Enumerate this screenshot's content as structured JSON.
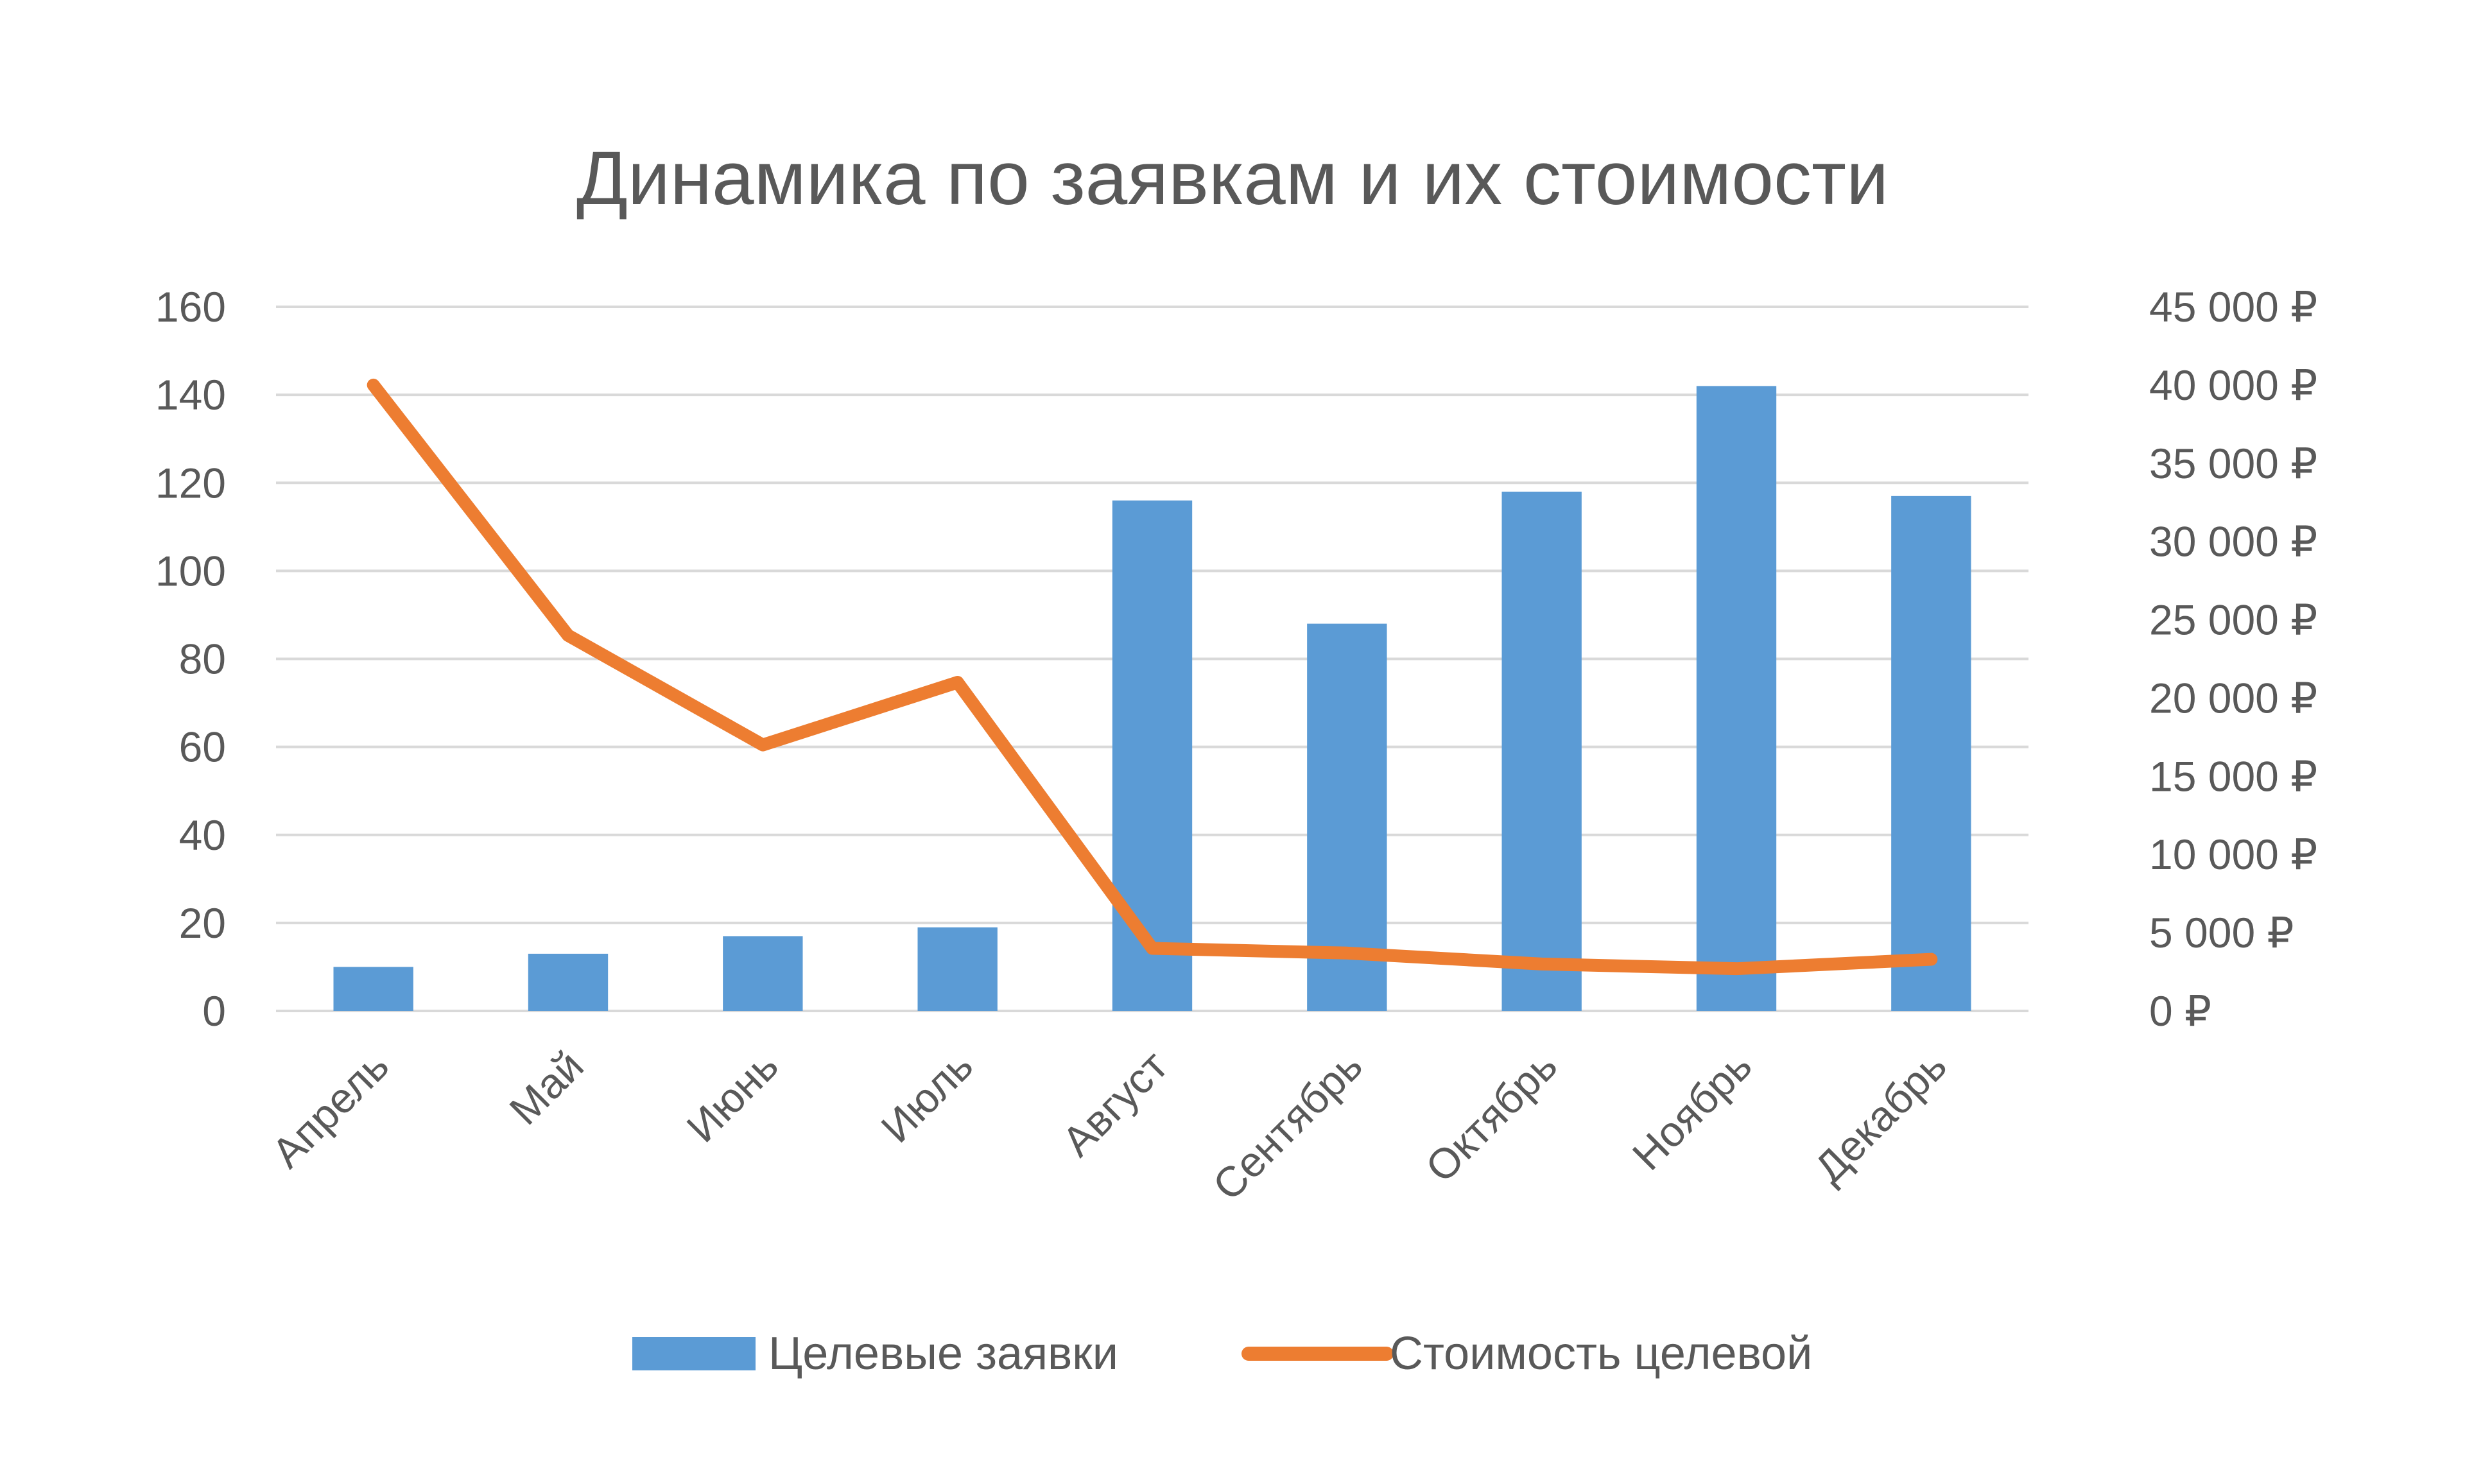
{
  "chart_data": {
    "type": "bar",
    "title": "Динамика по заявкам и их стоимости",
    "categories": [
      "Апрель",
      "Май",
      "Июнь",
      "Июль",
      "Август",
      "Сентябрь",
      "Октябрь",
      "Ноябрь",
      "Декабрь"
    ],
    "series": [
      {
        "name": "Целевые заявки",
        "type": "bar",
        "axis": "left",
        "color": "#5b9bd5",
        "values": [
          10,
          13,
          17,
          19,
          116,
          88,
          118,
          142,
          117
        ]
      },
      {
        "name": "Стоимость целевой",
        "type": "line",
        "axis": "right",
        "color": "#ed7d31",
        "values": [
          40000,
          24000,
          17000,
          21000,
          4000,
          3700,
          3000,
          2700,
          3300
        ]
      }
    ],
    "y_left": {
      "ylim": [
        0,
        160
      ],
      "ticks": [
        0,
        20,
        40,
        60,
        80,
        100,
        120,
        140,
        160
      ],
      "tick_labels": [
        "0",
        "20",
        "40",
        "60",
        "80",
        "100",
        "120",
        "140",
        "160"
      ]
    },
    "y_right": {
      "ylim": [
        0,
        45000
      ],
      "ticks": [
        0,
        5000,
        10000,
        15000,
        20000,
        25000,
        30000,
        35000,
        40000,
        45000
      ],
      "tick_labels": [
        "0 ₽",
        "5 000 ₽",
        "10 000 ₽",
        "15 000 ₽",
        "20 000 ₽",
        "25 000 ₽",
        "30 000 ₽",
        "35 000 ₽",
        "40 000 ₽",
        "45 000 ₽"
      ]
    },
    "grid": true,
    "legend_position": "bottom"
  }
}
